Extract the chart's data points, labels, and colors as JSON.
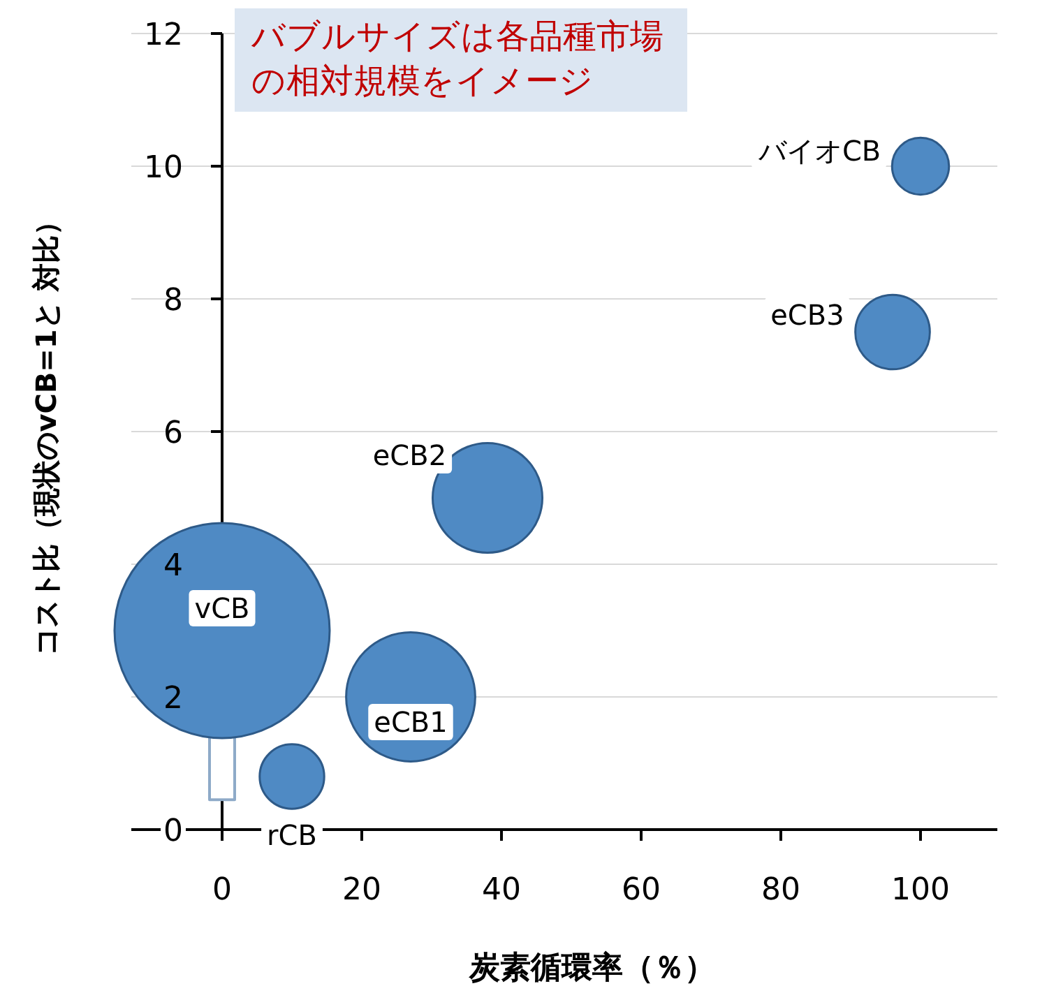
{
  "chart_data": {
    "type": "bubble",
    "xlabel": "炭素循環率（％）",
    "ylabel": "コスト比（現状のvCB=1と 対比）",
    "annotations": [
      "バブルサイズは各品種市場の相対規模をイメージ"
    ],
    "series": [
      {
        "name": "vCB",
        "color": "#4f8ac4",
        "x": [
          0
        ],
        "values": [
          3
        ],
        "sizes": [
          1
        ]
      },
      {
        "name": "rCB",
        "color": "#4f8ac4",
        "x": [
          10
        ],
        "values": [
          0.8
        ],
        "sizes": [
          0.09
        ]
      },
      {
        "name": "eCB1",
        "color": "#4f8ac4",
        "x": [
          27
        ],
        "values": [
          2
        ],
        "sizes": [
          0.36
        ]
      },
      {
        "name": "eCB2",
        "color": "#4f8ac4",
        "x": [
          38
        ],
        "values": [
          5
        ],
        "sizes": [
          0.26
        ]
      },
      {
        "name": "eCB3",
        "color": "#4f8ac4",
        "x": [
          96
        ],
        "values": [
          7.5
        ],
        "sizes": [
          0.12
        ]
      },
      {
        "name": "バイオCB",
        "color": "#4f8ac4",
        "x": [
          100
        ],
        "values": [
          10
        ],
        "sizes": [
          0.07
        ]
      }
    ],
    "xlim": [
      -13,
      111
    ],
    "ylim": [
      0,
      12
    ],
    "xticks": [
      0,
      20,
      40,
      60,
      80,
      100
    ],
    "yticks": [
      0,
      2,
      4,
      6,
      8,
      10,
      12
    ],
    "grid": "y"
  }
}
